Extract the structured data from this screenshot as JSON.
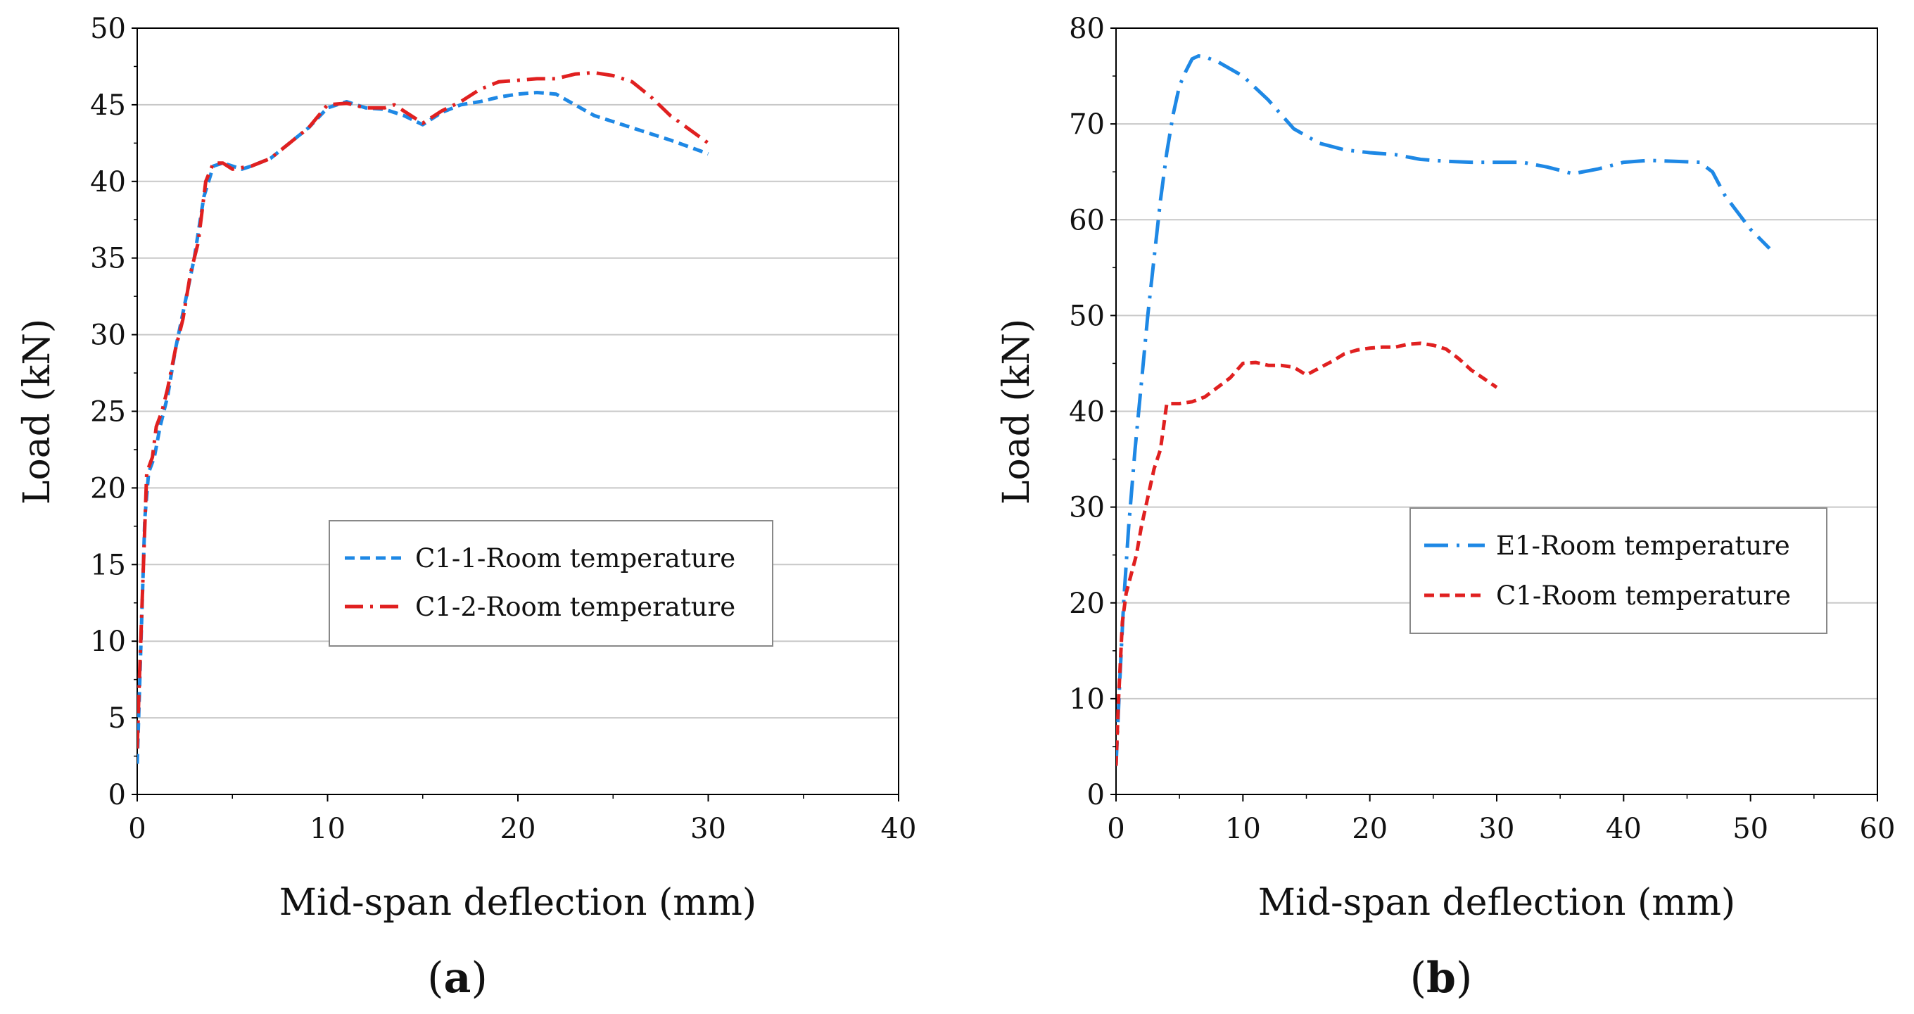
{
  "chart_data": [
    {
      "type": "line",
      "panel_label": "a",
      "xlabel": "Mid-span deflection (mm)",
      "ylabel": "Load (kN)",
      "xlim": [
        0,
        40
      ],
      "ylim": [
        0,
        50
      ],
      "xticks": [
        0,
        10,
        20,
        30,
        40
      ],
      "yticks": [
        0,
        5,
        10,
        15,
        20,
        25,
        30,
        35,
        40,
        45,
        50
      ],
      "grid": "horizontal",
      "legend_position": "center-right",
      "series": [
        {
          "name": "C1-1-Room temperature",
          "color": "#1e88e5",
          "dash": "dashed",
          "x": [
            0,
            0.2,
            0.4,
            0.6,
            0.9,
            1.2,
            1.6,
            2.0,
            2.5,
            3.0,
            3.5,
            4.0,
            4.5,
            5.0,
            5.5,
            6.0,
            7.0,
            8.0,
            9.0,
            10.0,
            11.0,
            12.0,
            13.0,
            14.0,
            15.0,
            16.0,
            17.0,
            18.0,
            19.0,
            20.0,
            21.0,
            22.0,
            23.0,
            24.0,
            26.0,
            28.0,
            30.0
          ],
          "y": [
            2,
            10,
            18,
            21,
            22,
            24,
            26,
            29,
            32,
            35,
            39,
            41,
            41.2,
            41,
            40.8,
            41,
            41.5,
            42.5,
            43.5,
            44.8,
            45.2,
            44.8,
            44.7,
            44.3,
            43.7,
            44.5,
            45,
            45.2,
            45.5,
            45.7,
            45.8,
            45.7,
            45,
            44.3,
            43.5,
            42.7,
            41.8
          ]
        },
        {
          "name": "C1-2-Room temperature",
          "color": "#e02020",
          "dash": "dashdot",
          "x": [
            0,
            0.1,
            0.3,
            0.5,
            0.8,
            1.0,
            1.3,
            1.6,
            2.0,
            2.4,
            2.8,
            3.2,
            3.6,
            4.0,
            4.5,
            5.0,
            6.0,
            7.0,
            8.0,
            9.0,
            10.0,
            11.0,
            12.0,
            13.0,
            13.5,
            14.0,
            15.0,
            16.0,
            17.0,
            18.0,
            19.0,
            20.0,
            21.0,
            22.0,
            23.0,
            24.0,
            25.0,
            26.0,
            27.0,
            28.0,
            29.0,
            30.0
          ],
          "y": [
            3,
            7,
            14,
            21,
            22,
            24,
            25,
            26.5,
            29,
            31,
            34,
            36,
            40,
            41.2,
            41.2,
            40.8,
            41,
            41.5,
            42.5,
            43.5,
            45,
            45.1,
            44.8,
            44.8,
            45,
            44.6,
            43.8,
            44.6,
            45.2,
            46,
            46.5,
            46.6,
            46.7,
            46.7,
            47,
            47.1,
            46.9,
            46.5,
            45.5,
            44.3,
            43.4,
            42.5
          ]
        }
      ]
    },
    {
      "type": "line",
      "panel_label": "b",
      "xlabel": "Mid-span deflection (mm)",
      "ylabel": "Load (kN)",
      "xlim": [
        0,
        60
      ],
      "ylim": [
        0,
        80
      ],
      "xticks": [
        0,
        10,
        20,
        30,
        40,
        50,
        60
      ],
      "yticks": [
        0,
        10,
        20,
        30,
        40,
        50,
        60,
        70,
        80
      ],
      "grid": "horizontal",
      "legend_position": "center-right",
      "series": [
        {
          "name": "E1-Room temperature",
          "color": "#1e88e5",
          "dash": "longdashdot",
          "x": [
            0,
            0.3,
            0.6,
            1.0,
            1.5,
            2.0,
            2.5,
            3.0,
            3.5,
            4.0,
            4.5,
            5.0,
            5.5,
            6.0,
            6.5,
            7.0,
            8.0,
            10.0,
            12.0,
            14.0,
            16.0,
            18.0,
            20.0,
            22.0,
            24.0,
            26.0,
            28.0,
            30.0,
            32.0,
            34.0,
            36.0,
            38.0,
            40.0,
            42.0,
            44.0,
            46.0,
            47.0,
            48.0,
            50.0,
            51.5
          ],
          "y": [
            3,
            12,
            20,
            28,
            36,
            43,
            50,
            56,
            62,
            67,
            71,
            74,
            75.5,
            76.8,
            77.1,
            77,
            76.5,
            75,
            72.5,
            69.5,
            68,
            67.3,
            67,
            66.8,
            66.3,
            66.1,
            66,
            66,
            66,
            65.5,
            64.8,
            65.3,
            66,
            66.2,
            66.1,
            66,
            65,
            62.5,
            59,
            57
          ]
        },
        {
          "name": "C1-Room temperature",
          "color": "#e02020",
          "dash": "dashed",
          "x": [
            0,
            0.2,
            0.5,
            0.8,
            1.2,
            1.6,
            2.0,
            2.5,
            3.0,
            3.5,
            4.0,
            5.0,
            6.0,
            7.0,
            8.0,
            9.0,
            10.0,
            11.0,
            12.0,
            13.0,
            14.0,
            15.0,
            16.0,
            17.0,
            18.0,
            19.0,
            20.0,
            21.0,
            22.0,
            23.0,
            24.0,
            25.0,
            26.0,
            27.0,
            28.0,
            29.0,
            30.0
          ],
          "y": [
            3,
            10,
            18,
            21,
            23,
            25,
            28,
            31,
            34,
            36,
            40.8,
            40.8,
            41,
            41.5,
            42.5,
            43.5,
            45,
            45.1,
            44.8,
            44.8,
            44.6,
            43.8,
            44.5,
            45.2,
            46,
            46.4,
            46.6,
            46.7,
            46.7,
            47,
            47.1,
            46.9,
            46.5,
            45.5,
            44.3,
            43.4,
            42.5
          ]
        }
      ]
    }
  ]
}
